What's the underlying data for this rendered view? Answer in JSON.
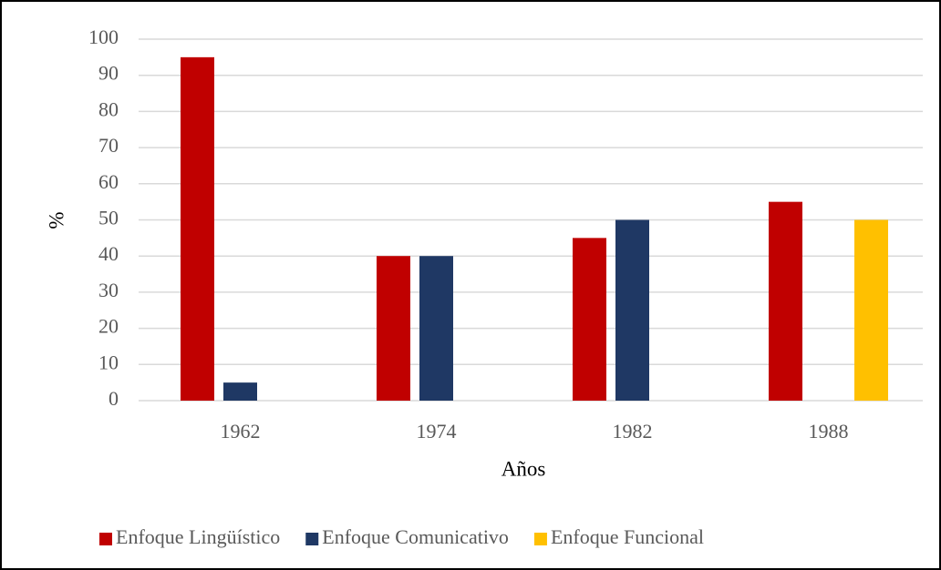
{
  "chart_data": {
    "type": "bar",
    "xlabel": "Años",
    "ylabel": "%",
    "categories": [
      "1962",
      "1974",
      "1982",
      "1988"
    ],
    "series": [
      {
        "name": "Enfoque Lingüístico",
        "color": "#c00000",
        "values": [
          95,
          40,
          45,
          55
        ]
      },
      {
        "name": "Enfoque Comunicativo",
        "color": "#1f3864",
        "values": [
          5,
          40,
          50,
          0
        ]
      },
      {
        "name": "Enfoque Funcional",
        "color": "#ffc000",
        "values": [
          0,
          0,
          0,
          50
        ]
      }
    ],
    "ylim": [
      0,
      100
    ],
    "yticks": [
      0,
      10,
      20,
      30,
      40,
      50,
      60,
      70,
      80,
      90,
      100
    ],
    "grid": true,
    "legend": "bottom"
  }
}
